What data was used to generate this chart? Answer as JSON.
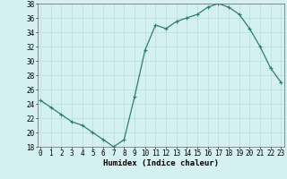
{
  "x": [
    0,
    1,
    2,
    3,
    4,
    5,
    6,
    7,
    8,
    9,
    10,
    11,
    12,
    13,
    14,
    15,
    16,
    17,
    18,
    19,
    20,
    21,
    22,
    23
  ],
  "y": [
    24.5,
    23.5,
    22.5,
    21.5,
    21.0,
    20.0,
    19.0,
    18.0,
    19.0,
    25.0,
    31.5,
    35.0,
    34.5,
    35.5,
    36.0,
    36.5,
    37.5,
    38.0,
    37.5,
    36.5,
    34.5,
    32.0,
    29.0,
    27.0
  ],
  "line_color": "#2e7d6e",
  "marker": "+",
  "marker_size": 3,
  "marker_linewidth": 0.8,
  "line_width": 0.9,
  "bg_color": "#d4f0f0",
  "grid_color": "#b0d8d8",
  "xlabel": "Humidex (Indice chaleur)",
  "xlabel_fontsize": 6.5,
  "tick_fontsize": 5.5,
  "ylim": [
    18,
    38
  ],
  "yticks": [
    18,
    20,
    22,
    24,
    26,
    28,
    30,
    32,
    34,
    36,
    38
  ],
  "xticks": [
    0,
    1,
    2,
    3,
    4,
    5,
    6,
    7,
    8,
    9,
    10,
    11,
    12,
    13,
    14,
    15,
    16,
    17,
    18,
    19,
    20,
    21,
    22,
    23
  ],
  "xlim": [
    -0.3,
    23.3
  ]
}
